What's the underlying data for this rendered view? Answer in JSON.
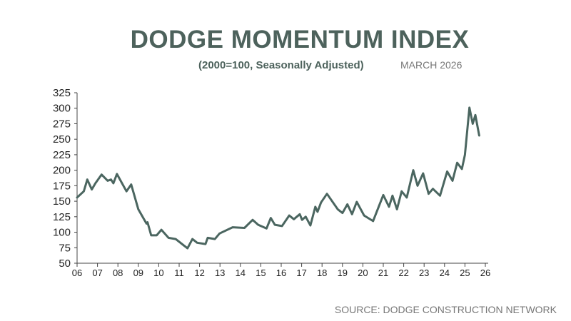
{
  "chart_data": {
    "type": "line",
    "title": "DODGE MOMENTUM INDEX",
    "subtitle": "(2000=100, Seasonally Adjusted)",
    "date_label": "MARCH 2026",
    "source": "SOURCE: DODGE CONSTRUCTION NETWORK",
    "xlabel": "",
    "ylabel": "",
    "xlim": [
      2006,
      2026
    ],
    "ylim": [
      50,
      325
    ],
    "yticks": [
      "325",
      "300",
      "275",
      "250",
      "225",
      "200",
      "175",
      "150",
      "125",
      "100",
      "75",
      "50"
    ],
    "xticks": [
      "06",
      "07",
      "08",
      "09",
      "10",
      "11",
      "12",
      "13",
      "14",
      "15",
      "16",
      "17",
      "18",
      "19",
      "20",
      "21",
      "22",
      "23",
      "24",
      "25",
      "26"
    ],
    "grid": false,
    "line_color": "#4b6660",
    "series": [
      {
        "name": "Dodge Momentum Index",
        "x": [
          2006.0,
          2006.33,
          2006.5,
          2006.72,
          2006.9,
          2007.2,
          2007.5,
          2007.66,
          2007.78,
          2007.95,
          2008.42,
          2008.65,
          2009.0,
          2009.4,
          2009.45,
          2009.63,
          2009.9,
          2010.13,
          2010.48,
          2010.83,
          2011.41,
          2011.65,
          2011.88,
          2012.29,
          2012.4,
          2012.75,
          2012.98,
          2013.62,
          2014.2,
          2014.6,
          2014.87,
          2015.28,
          2015.49,
          2015.69,
          2016.04,
          2016.39,
          2016.62,
          2016.91,
          2017.02,
          2017.2,
          2017.43,
          2017.67,
          2017.78,
          2017.95,
          2018.24,
          2018.77,
          2019.0,
          2019.24,
          2019.47,
          2019.7,
          2020.06,
          2020.5,
          2021.0,
          2021.28,
          2021.45,
          2021.67,
          2021.9,
          2022.15,
          2022.47,
          2022.68,
          2022.95,
          2023.22,
          2023.43,
          2023.78,
          2024.13,
          2024.39,
          2024.62,
          2024.85,
          2025.0,
          2025.22,
          2025.38,
          2025.51,
          2025.7
        ],
        "values": [
          156,
          166,
          185,
          169,
          179,
          193,
          183,
          185,
          179,
          194,
          166,
          177,
          137,
          114,
          116,
          95,
          95,
          104,
          91,
          89,
          74,
          89,
          83,
          81,
          91,
          89,
          98,
          108,
          107,
          120,
          112,
          106,
          123,
          112,
          110,
          127,
          121,
          129,
          120,
          125,
          111,
          141,
          133,
          148,
          162,
          137,
          131,
          145,
          129,
          149,
          127,
          118,
          160,
          141,
          159,
          137,
          166,
          156,
          200,
          175,
          195,
          162,
          170,
          159,
          198,
          183,
          212,
          202,
          225,
          301,
          275,
          289,
          256
        ]
      }
    ]
  }
}
